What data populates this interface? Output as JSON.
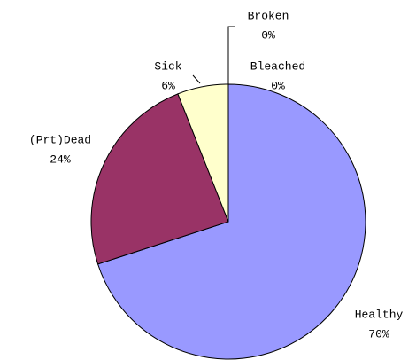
{
  "chart_data": {
    "type": "pie",
    "categories": [
      "Healthy",
      "(Prt)Dead",
      "Sick",
      "Bleached",
      "Broken"
    ],
    "values": [
      70,
      24,
      6,
      0,
      0
    ],
    "value_labels": [
      "70%",
      "24%",
      "6%",
      "0%",
      "0%"
    ],
    "colors": [
      "#9999ff",
      "#993366",
      "#ffffcc",
      "#ccffff",
      "#660066"
    ]
  }
}
